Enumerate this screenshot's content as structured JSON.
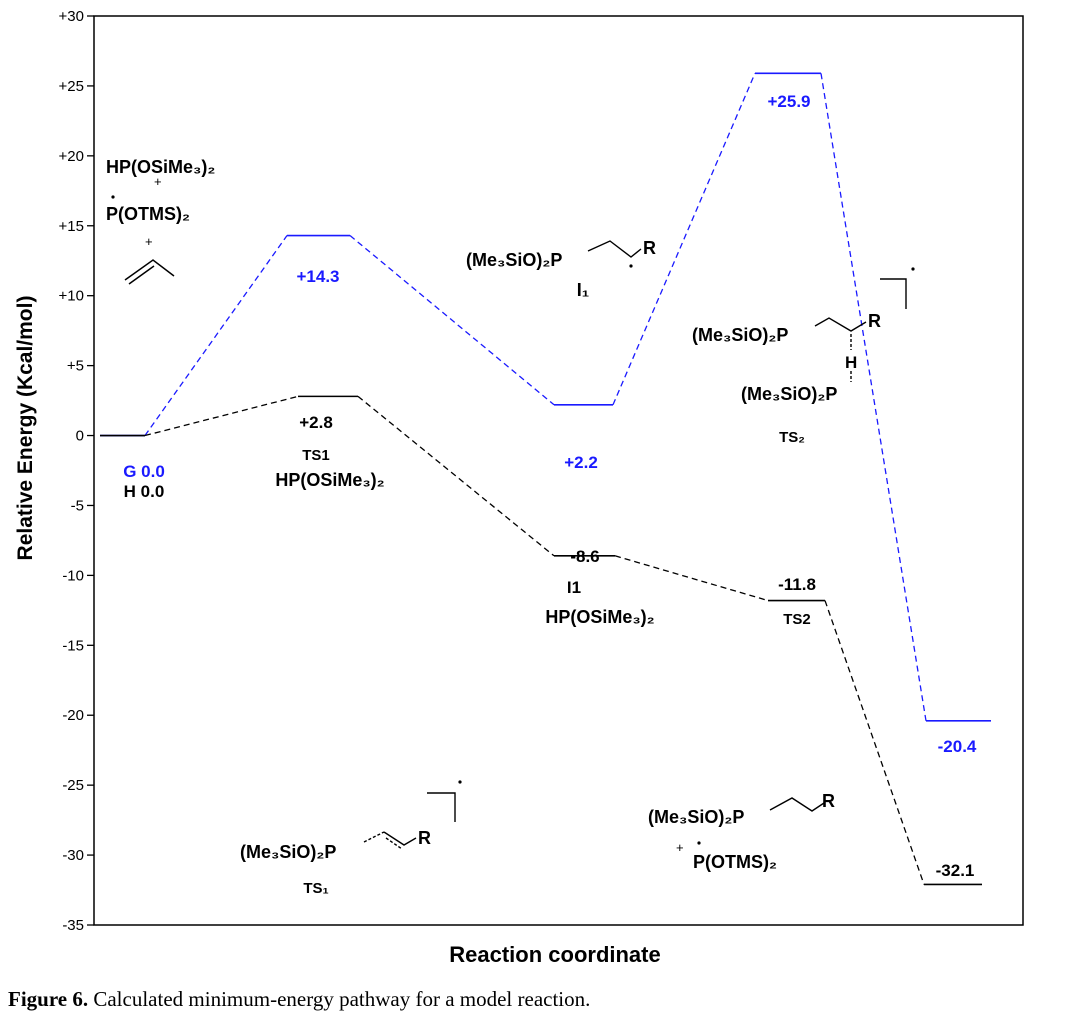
{
  "chart_data": {
    "type": "line",
    "title": "",
    "xlabel": "Reaction coordinate",
    "ylabel": "Relative Energy (Kcal/mol)",
    "ylim": [
      -35,
      30
    ],
    "yticks": [
      "+30",
      "+25",
      "+20",
      "+15",
      "+10",
      "+5",
      "0",
      "-5",
      "-10",
      "-15",
      "-20",
      "-25",
      "-30",
      "-35"
    ],
    "grid": false,
    "legend": "none",
    "series": [
      {
        "color": "#1a1aff",
        "levels": [
          {
            "stage": "reactants",
            "value": 0.0
          },
          {
            "stage": "TS1",
            "value": 14.3
          },
          {
            "stage": "I1",
            "value": 2.2
          },
          {
            "stage": "TS2",
            "value": 25.9
          },
          {
            "stage": "products",
            "value": -20.4
          }
        ]
      },
      {
        "color": "#000000",
        "levels": [
          {
            "stage": "reactants",
            "value": 0.0
          },
          {
            "stage": "TS1",
            "value": 2.8
          },
          {
            "stage": "I1",
            "value": -8.6
          },
          {
            "stage": "TS2",
            "value": -11.8
          },
          {
            "stage": "products",
            "value": -32.1
          }
        ]
      }
    ],
    "labels": {
      "g_start": "G 0.0",
      "h_start": "H 0.0",
      "g_ts1": "+14.3",
      "g_i1": "+2.2",
      "g_ts2": "+25.9",
      "g_prod": "-20.4",
      "h_ts1": "+2.8",
      "h_i1": "-8.6",
      "h_ts2": "-11.8",
      "h_prod": "-32.1",
      "ts1_label": "TS1",
      "i1_label": "I1",
      "ts2_label": "TS2"
    },
    "annotations": {
      "reactant_hp": "HP(OSiMe3)2",
      "plus_sign": "+",
      "reactant_p": "P(OTMS)2",
      "h_ts1_species": "HP(OSiMe3)2",
      "h_i1_species": "HP(OSiMe3)2",
      "i1_structure": "(Me3SiO)2P",
      "i1_structure_label": "I1",
      "ts2_structure_top": "(Me3SiO)2P",
      "ts2_structure_h": "H",
      "ts2_structure_bottom": "(Me3SiO)2P",
      "ts2_structure_label": "TS2",
      "ts1_structure": "(Me3SiO)2P",
      "ts1_structure_label": "TS1",
      "prod_structure": "(Me3SiO)2P",
      "prod_radical": "P(OTMS)2",
      "r_group": "R"
    }
  },
  "caption": {
    "label": "Figure 6.",
    "text": " Calculated minimum-energy pathway for a model reaction."
  }
}
